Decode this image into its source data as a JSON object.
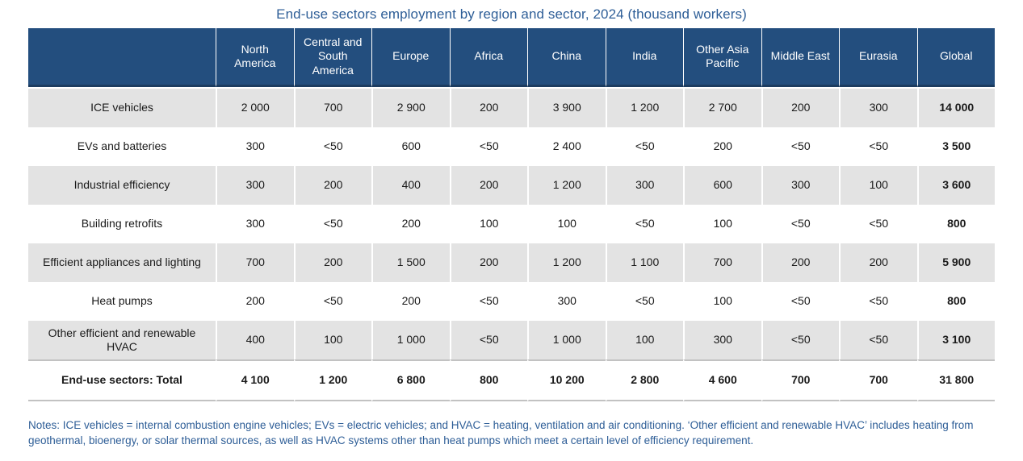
{
  "chart_data": {
    "type": "table",
    "title": "End-use sectors employment by region and sector, 2024 (thousand workers)",
    "columns": [
      "",
      "North America",
      "Central and South America",
      "Europe",
      "Africa",
      "China",
      "India",
      "Other Asia Pacific",
      "Middle East",
      "Eurasia",
      "Global"
    ],
    "rows": [
      {
        "label": "ICE vehicles",
        "values": [
          "2 000",
          "700",
          "2 900",
          "200",
          "3 900",
          "1 200",
          "2 700",
          "200",
          "300",
          "14 000"
        ],
        "total": false
      },
      {
        "label": "EVs and batteries",
        "values": [
          "300",
          "<50",
          "600",
          "<50",
          "2 400",
          "<50",
          "200",
          "<50",
          "<50",
          "3 500"
        ],
        "total": false
      },
      {
        "label": "Industrial efficiency",
        "values": [
          "300",
          "200",
          "400",
          "200",
          "1 200",
          "300",
          "600",
          "300",
          "100",
          "3 600"
        ],
        "total": false
      },
      {
        "label": "Building retrofits",
        "values": [
          "300",
          "<50",
          "200",
          "100",
          "100",
          "<50",
          "100",
          "<50",
          "<50",
          "800"
        ],
        "total": false
      },
      {
        "label": "Efficient appliances and lighting",
        "values": [
          "700",
          "200",
          "1 500",
          "200",
          "1 200",
          "1 100",
          "700",
          "200",
          "200",
          "5 900"
        ],
        "total": false
      },
      {
        "label": "Heat pumps",
        "values": [
          "200",
          "<50",
          "200",
          "<50",
          "300",
          "<50",
          "100",
          "<50",
          "<50",
          "800"
        ],
        "total": false
      },
      {
        "label": "Other efficient and renewable HVAC",
        "values": [
          "400",
          "100",
          "1 000",
          "<50",
          "1 000",
          "100",
          "300",
          "<50",
          "<50",
          "3 100"
        ],
        "total": false
      },
      {
        "label": "End-use sectors: Total",
        "values": [
          "4 100",
          "1 200",
          "6 800",
          "800",
          "10 200",
          "2 800",
          "4 600",
          "700",
          "700",
          "31 800"
        ],
        "total": true
      }
    ],
    "notes": "Notes: ICE vehicles = internal combustion engine vehicles; EVs = electric vehicles; and HVAC = heating, ventilation and air conditioning. ‘Other efficient and renewable HVAC’ includes heating from geothermal, bioenergy, or solar thermal sources, as well as HVAC systems other than heat pumps which meet a certain level of efficiency requirement."
  },
  "colors": {
    "header_bg": "#234e7e",
    "header_border": "#1c3c60",
    "header_text": "#ffffff",
    "row_alt_bg": "#e3e3e3",
    "total_border": "#c2c2c2",
    "body_text": "#1a1a1a",
    "title_text": "#2e5e97",
    "notes_text": "#2e5e97"
  }
}
